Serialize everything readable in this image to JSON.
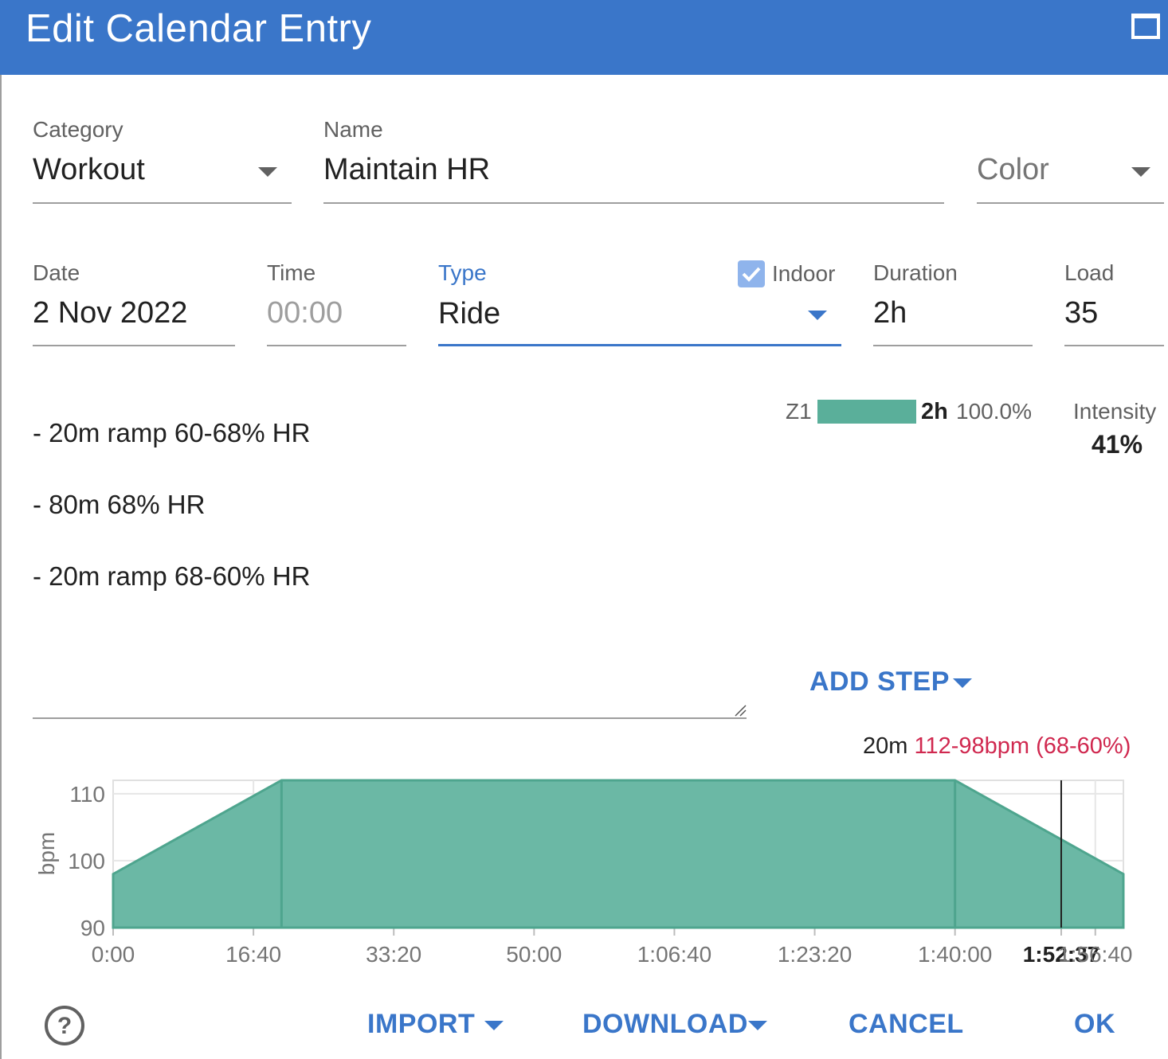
{
  "dialog": {
    "title": "Edit Calendar Entry"
  },
  "fields": {
    "category": {
      "label": "Category",
      "value": "Workout"
    },
    "name": {
      "label": "Name",
      "value": "Maintain HR"
    },
    "color": {
      "placeholder": "Color"
    },
    "date": {
      "label": "Date",
      "value": "2 Nov 2022"
    },
    "time": {
      "label": "Time",
      "placeholder": "00:00"
    },
    "type": {
      "label": "Type",
      "value": "Ride"
    },
    "indoor": {
      "label": "Indoor",
      "checked": true
    },
    "duration": {
      "label": "Duration",
      "value": "2h"
    },
    "load": {
      "label": "Load",
      "value": "35"
    }
  },
  "zones": {
    "zone_label": "Z1",
    "zone_time": "2h",
    "zone_pct": "100.0%",
    "zone_fraction": 1.0,
    "zone_color": "#5aaf9a"
  },
  "intensity": {
    "label": "Intensity",
    "value": "41%"
  },
  "steps": [
    "- 20m ramp 60-68% HR",
    "- 80m 68% HR",
    "- 20m ramp 68-60% HR"
  ],
  "add_step": {
    "label": "ADD STEP"
  },
  "hover_info": {
    "duration": "20m",
    "detail": "112-98bpm (68-60%)"
  },
  "chart_data": {
    "type": "area",
    "ylabel": "bpm",
    "ylim": [
      90,
      112
    ],
    "yticks": [
      "110",
      "100",
      "90"
    ],
    "xticks": [
      "0:00",
      "16:40",
      "33:20",
      "50:00",
      "1:06:40",
      "1:23:20",
      "1:40:00",
      "1:52:37",
      "1:56:40"
    ],
    "x": [
      0,
      1200,
      6000,
      7200
    ],
    "y": [
      98,
      112,
      112,
      98
    ],
    "cursor_x": "1:52:37",
    "fill_color": "#6bb8a5",
    "line_color": "#4ea58e"
  },
  "footer": {
    "import": "IMPORT",
    "download": "DOWNLOAD",
    "cancel": "CANCEL",
    "ok": "OK"
  },
  "colors": {
    "accent": "#3a76c9",
    "hover_red": "#d0284f"
  }
}
